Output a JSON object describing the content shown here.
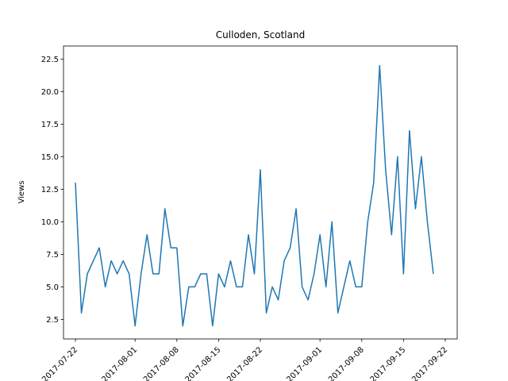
{
  "chart_data": {
    "type": "line",
    "title": "Culloden, Scotland",
    "xlabel": "",
    "ylabel": "Views",
    "x_tick_labels": [
      "2017-07-22",
      "2017-08-01",
      "2017-08-08",
      "2017-08-15",
      "2017-08-22",
      "2017-09-01",
      "2017-09-08",
      "2017-09-15",
      "2017-09-22"
    ],
    "y_tick_labels": [
      "2.5",
      "5.0",
      "7.5",
      "10.0",
      "12.5",
      "15.0",
      "17.5",
      "20.0",
      "22.5"
    ],
    "ylim": [
      1.0,
      23.5
    ],
    "xlim": [
      "2017-07-20",
      "2017-09-24"
    ],
    "grid": false,
    "series": [
      {
        "color": "#1f77b4",
        "x": [
          "2017-07-22",
          "2017-07-23",
          "2017-07-24",
          "2017-07-25",
          "2017-07-26",
          "2017-07-27",
          "2017-07-28",
          "2017-07-29",
          "2017-07-30",
          "2017-07-31",
          "2017-08-01",
          "2017-08-02",
          "2017-08-03",
          "2017-08-04",
          "2017-08-05",
          "2017-08-06",
          "2017-08-07",
          "2017-08-08",
          "2017-08-09",
          "2017-08-10",
          "2017-08-11",
          "2017-08-12",
          "2017-08-13",
          "2017-08-14",
          "2017-08-15",
          "2017-08-16",
          "2017-08-17",
          "2017-08-18",
          "2017-08-19",
          "2017-08-20",
          "2017-08-21",
          "2017-08-22",
          "2017-08-23",
          "2017-08-24",
          "2017-08-25",
          "2017-08-26",
          "2017-08-27",
          "2017-08-28",
          "2017-08-29",
          "2017-08-30",
          "2017-08-31",
          "2017-09-01",
          "2017-09-02",
          "2017-09-03",
          "2017-09-04",
          "2017-09-05",
          "2017-09-06",
          "2017-09-07",
          "2017-09-08",
          "2017-09-09",
          "2017-09-10",
          "2017-09-11",
          "2017-09-12",
          "2017-09-13",
          "2017-09-14",
          "2017-09-15",
          "2017-09-16",
          "2017-09-17",
          "2017-09-18",
          "2017-09-19",
          "2017-09-20",
          "2017-09-21"
        ],
        "values": [
          13,
          3,
          6,
          7,
          8,
          5,
          7,
          6,
          7,
          6,
          2,
          6,
          9,
          6,
          6,
          11,
          8,
          8,
          2,
          5,
          5,
          6,
          6,
          2,
          6,
          5,
          7,
          5,
          5,
          9,
          6,
          14,
          3,
          5,
          4,
          7,
          8,
          11,
          5,
          4,
          6,
          9,
          5,
          10,
          3,
          5,
          7,
          5,
          5,
          10,
          13,
          22,
          14,
          9,
          15,
          6,
          17,
          11,
          15,
          10,
          6,
          null
        ]
      }
    ]
  }
}
